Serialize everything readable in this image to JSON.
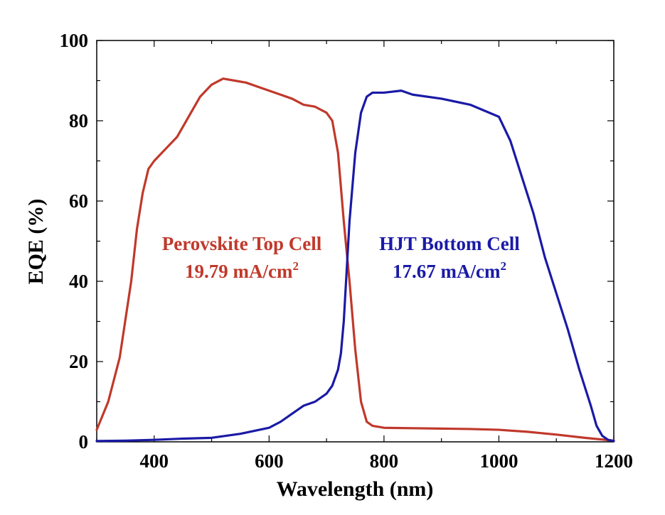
{
  "chart_data": {
    "type": "line",
    "title": "",
    "xlabel": "Wavelength (nm)",
    "ylabel": "EQE (%)",
    "xlim": [
      300,
      1200
    ],
    "ylim": [
      0,
      100
    ],
    "xticks": [
      400,
      600,
      800,
      1000,
      1200
    ],
    "yticks": [
      0,
      20,
      40,
      60,
      80,
      100
    ],
    "grid": false,
    "series": [
      {
        "color": "#c0392b",
        "x": [
          300,
          320,
          340,
          360,
          370,
          380,
          390,
          400,
          420,
          440,
          460,
          480,
          500,
          520,
          540,
          560,
          580,
          600,
          620,
          640,
          660,
          680,
          700,
          710,
          720,
          730,
          740,
          750,
          760,
          770,
          780,
          800,
          850,
          900,
          950,
          1000,
          1050,
          1100,
          1150,
          1200
        ],
        "values": [
          3,
          10,
          21,
          40,
          53,
          62,
          68,
          70,
          73,
          76,
          81,
          86,
          89,
          90.5,
          90,
          89.5,
          88.5,
          87.5,
          86.5,
          85.5,
          84,
          83.5,
          82,
          80,
          72,
          55,
          40,
          23,
          10,
          5,
          4,
          3.5,
          3.4,
          3.3,
          3.2,
          3,
          2.5,
          1.8,
          1,
          0.3
        ]
      },
      {
        "color": "#1a1aa6",
        "x": [
          300,
          350,
          400,
          450,
          500,
          550,
          600,
          620,
          640,
          660,
          680,
          700,
          710,
          720,
          725,
          730,
          740,
          750,
          760,
          770,
          780,
          800,
          830,
          850,
          900,
          950,
          1000,
          1020,
          1040,
          1060,
          1080,
          1100,
          1120,
          1140,
          1160,
          1170,
          1180,
          1190,
          1200
        ],
        "values": [
          0.2,
          0.3,
          0.5,
          0.8,
          1,
          2,
          3.5,
          5,
          7,
          9,
          10,
          12,
          14,
          18,
          22,
          30,
          55,
          72,
          82,
          86,
          87,
          87,
          87.5,
          86.5,
          85.5,
          84,
          81,
          75,
          66,
          57,
          46,
          37,
          28,
          18,
          9,
          4,
          1.5,
          0.5,
          0.2
        ]
      }
    ],
    "annotations": [
      {
        "line1": "Perovskite Top Cell",
        "line2": "19.79 mA/cm",
        "sup": "2",
        "color": "#c0392b"
      },
      {
        "line1": "HJT Bottom Cell",
        "line2": "17.67 mA/cm",
        "sup": "2",
        "color": "#1a1aa6"
      }
    ]
  }
}
